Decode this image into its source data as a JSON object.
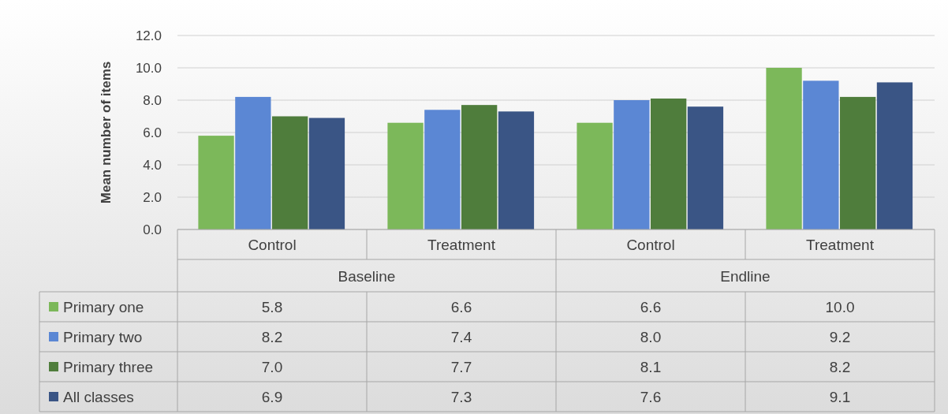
{
  "chart_data": {
    "type": "bar",
    "ylabel": "Mean number of items",
    "categories": [
      "Control",
      "Treatment",
      "Control",
      "Treatment"
    ],
    "annotations": [
      "Baseline",
      "Endline"
    ],
    "series": [
      {
        "name": "Primary one",
        "color": "#7cb85a",
        "values": [
          5.8,
          6.6,
          6.6,
          10.0
        ],
        "value_labels": [
          "5.8",
          "6.6",
          "6.6",
          "10.0"
        ]
      },
      {
        "name": "Primary two",
        "color": "#5b87d4",
        "values": [
          8.2,
          7.4,
          8.0,
          9.2
        ],
        "value_labels": [
          "8.2",
          "7.4",
          "8.0",
          "9.2"
        ]
      },
      {
        "name": "Primary three",
        "color": "#4f7d3c",
        "values": [
          7.0,
          7.7,
          8.1,
          8.2
        ],
        "value_labels": [
          "7.0",
          "7.7",
          "8.1",
          "8.2"
        ]
      },
      {
        "name": "All classes",
        "color": "#3a5585",
        "values": [
          6.9,
          7.3,
          7.6,
          9.1
        ],
        "value_labels": [
          "6.9",
          "7.3",
          "7.6",
          "9.1"
        ]
      }
    ],
    "ylim": [
      0,
      12
    ],
    "yticks": [
      {
        "value": 0,
        "label": "0.0"
      },
      {
        "value": 2,
        "label": "2.0"
      },
      {
        "value": 4,
        "label": "4.0"
      },
      {
        "value": 6,
        "label": "6.0"
      },
      {
        "value": 8,
        "label": "8.0"
      },
      {
        "value": 10,
        "label": "10.0"
      },
      {
        "value": 12,
        "label": "12.0"
      }
    ],
    "grid": "y",
    "legend": "bottom"
  }
}
